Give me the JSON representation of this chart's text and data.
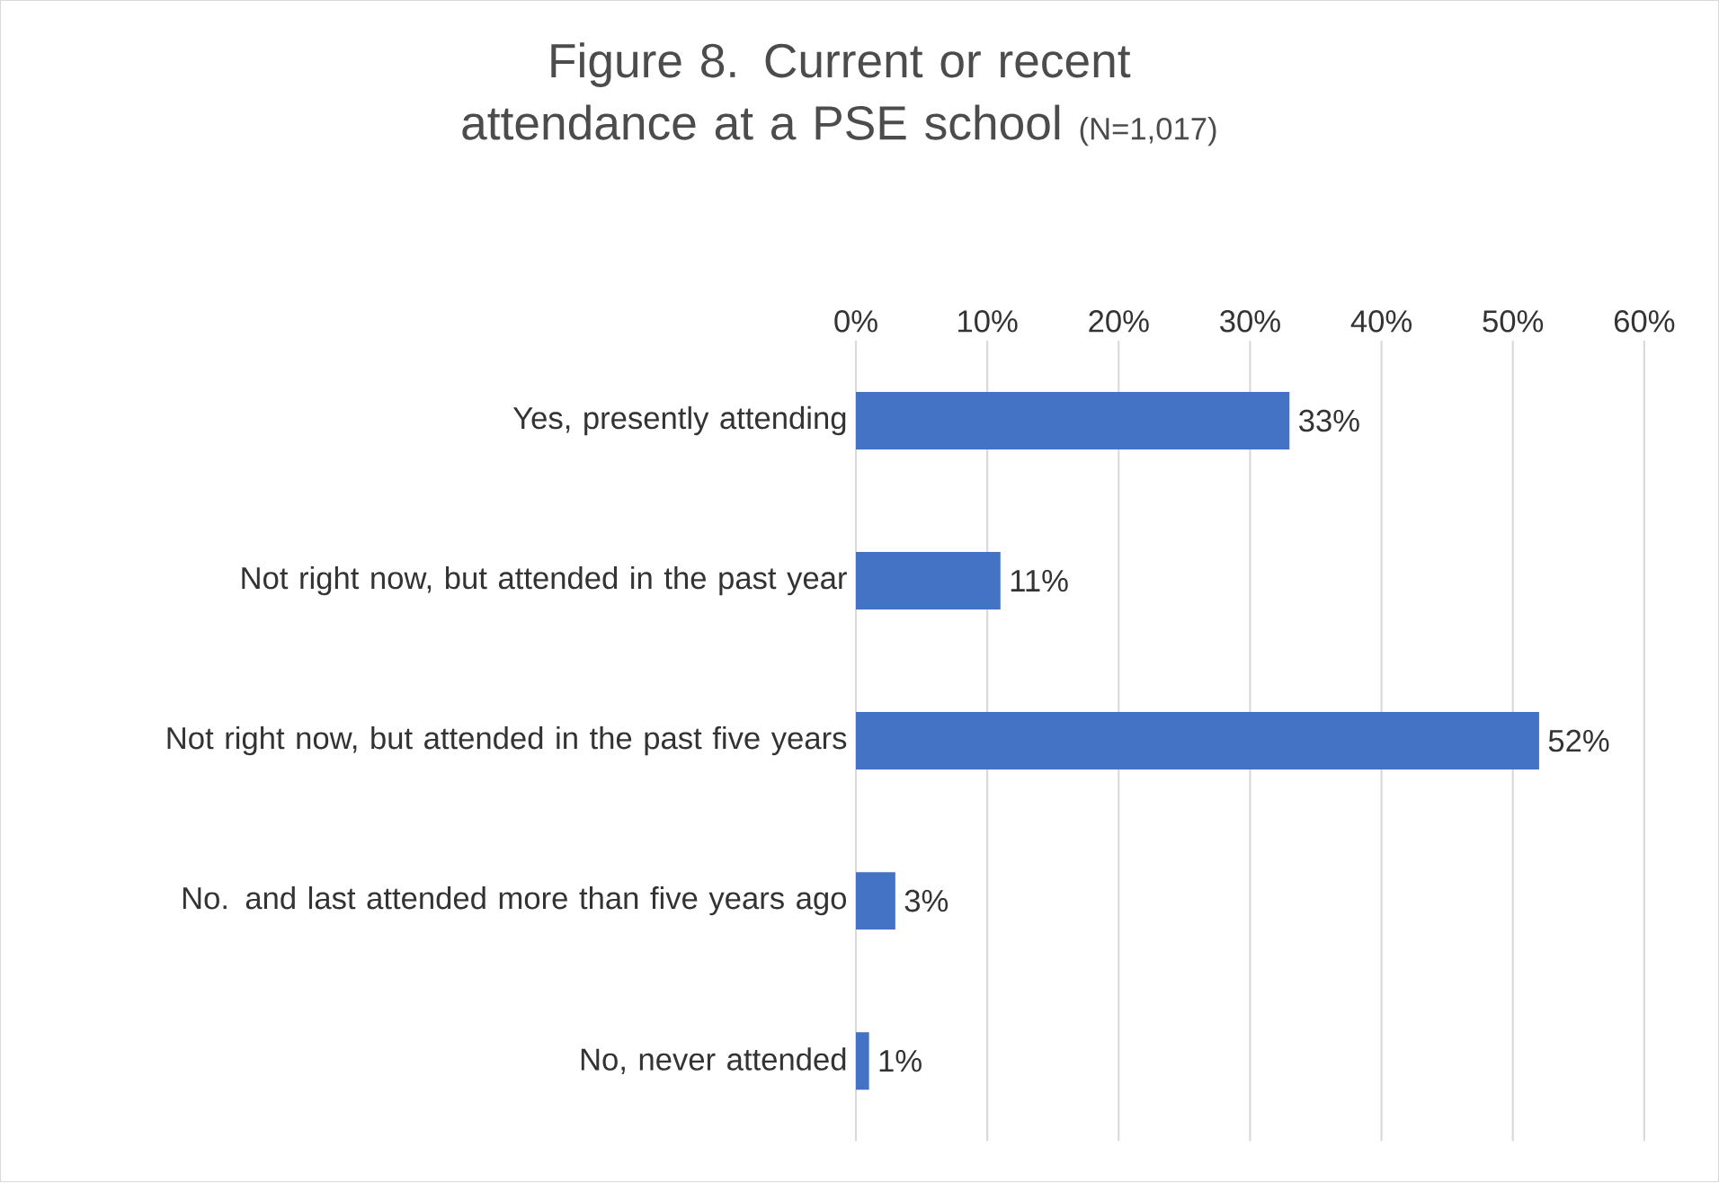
{
  "chart_data": {
    "type": "bar",
    "orientation": "horizontal",
    "title": "Figure 8. Current or recent attendance at a PSE school",
    "subtitle": "(N=1,017)",
    "categories": [
      "Yes, presently attending",
      "Not right now, but attended in the past year",
      "Not right now, but attended in the past five years",
      "No. and last attended more than five years ago",
      "No, never attended"
    ],
    "values": [
      33,
      11,
      52,
      3,
      1
    ],
    "value_labels": [
      "33%",
      "11%",
      "52%",
      "3%",
      "1%"
    ],
    "color": "#4472c4",
    "xlim": [
      0,
      60
    ],
    "xticks": [
      {
        "value": 0,
        "label": "0%"
      },
      {
        "value": 10,
        "label": "10%"
      },
      {
        "value": 20,
        "label": "20%"
      },
      {
        "value": 30,
        "label": "30%"
      },
      {
        "value": 40,
        "label": "40%"
      },
      {
        "value": 50,
        "label": "50%"
      },
      {
        "value": 60,
        "label": "60%"
      }
    ],
    "grid": "x"
  }
}
